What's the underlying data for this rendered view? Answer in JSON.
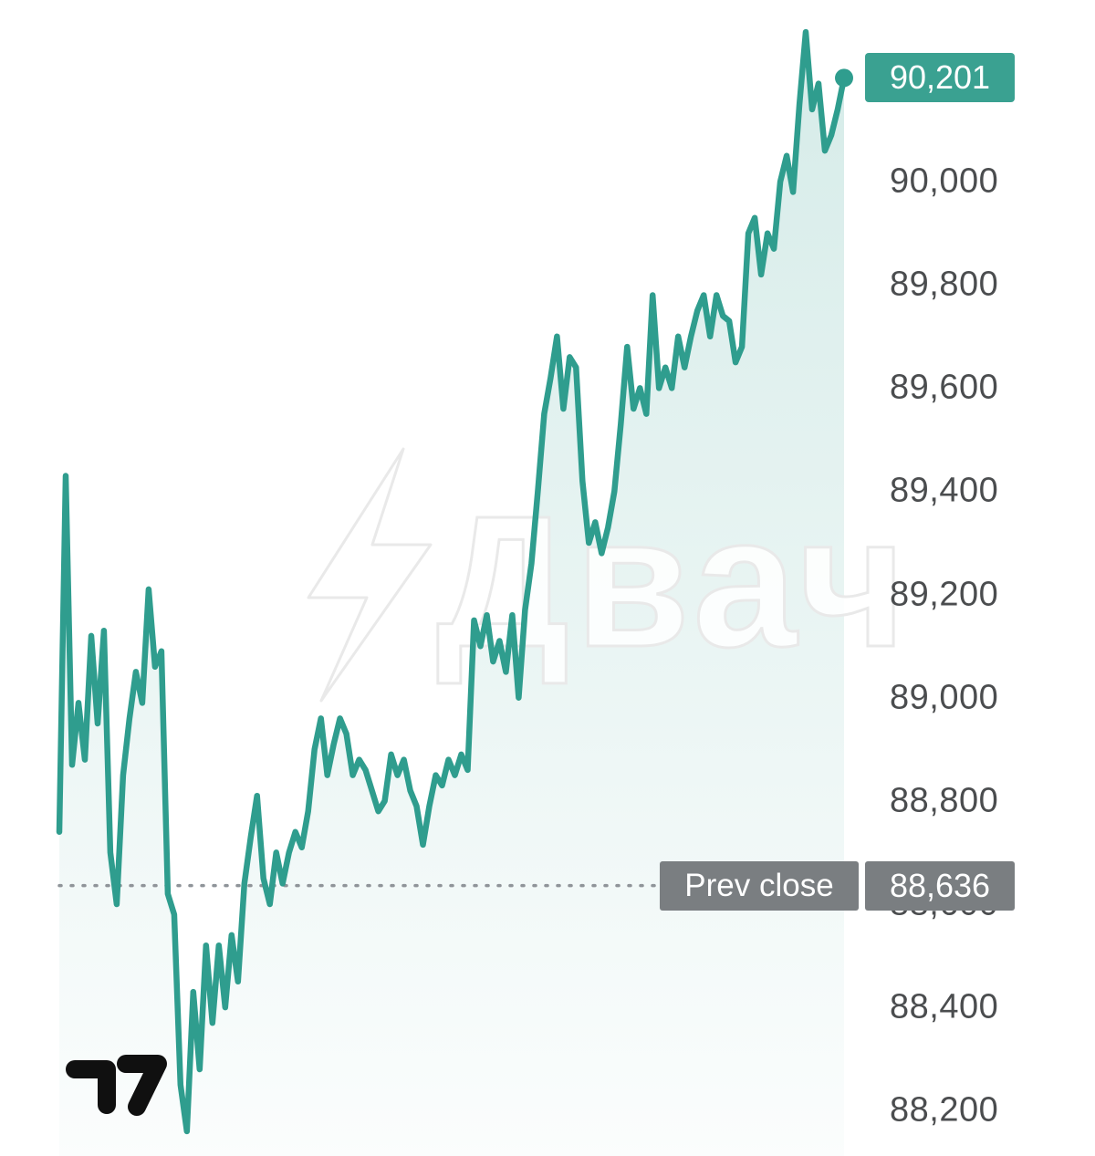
{
  "watermark": {
    "text": "Двач",
    "icon": "lightning-bolt"
  },
  "branding": {
    "name": "tradingview-logo"
  },
  "price_axis": {
    "current_badge": {
      "text": "90,201",
      "color": "#3aa191"
    },
    "prev_close_badge": {
      "label": "Prev close",
      "value": "88,636",
      "color": "#7a7e81"
    }
  },
  "chart_data": {
    "type": "area",
    "title": "",
    "xlabel": "",
    "ylabel": "",
    "legend": false,
    "grid": false,
    "line_color": "#2f9d8e",
    "fill_top": "rgba(47,157,142,0.20)",
    "fill_bottom": "rgba(47,157,142,0.02)",
    "prev_line_color": "#8f9499",
    "current_value": 90201,
    "prev_close_value": 88636,
    "ylim": [
      88112,
      90352
    ],
    "y_ticks": [
      {
        "value": 90000,
        "label": "90,000"
      },
      {
        "value": 89800,
        "label": "89,800"
      },
      {
        "value": 89600,
        "label": "89,600"
      },
      {
        "value": 89400,
        "label": "89,400"
      },
      {
        "value": 89200,
        "label": "89,200"
      },
      {
        "value": 89000,
        "label": "89,000"
      },
      {
        "value": 88800,
        "label": "88,800"
      },
      {
        "value": 88600,
        "label": "88,600"
      },
      {
        "value": 88400,
        "label": "88,400"
      },
      {
        "value": 88200,
        "label": "88,200"
      }
    ],
    "values": [
      88740,
      89430,
      88870,
      88990,
      88880,
      89120,
      88950,
      89130,
      88700,
      88600,
      88850,
      88960,
      89050,
      88990,
      89210,
      89060,
      89090,
      88620,
      88580,
      88250,
      88160,
      88430,
      88280,
      88520,
      88370,
      88520,
      88400,
      88540,
      88450,
      88640,
      88730,
      88810,
      88650,
      88600,
      88700,
      88640,
      88700,
      88740,
      88710,
      88780,
      88900,
      88960,
      88850,
      88910,
      88960,
      88930,
      88850,
      88880,
      88860,
      88820,
      88780,
      88800,
      88890,
      88850,
      88880,
      88820,
      88790,
      88715,
      88790,
      88850,
      88830,
      88880,
      88850,
      88890,
      88860,
      89150,
      89100,
      89160,
      89070,
      89110,
      89050,
      89160,
      89000,
      89170,
      89260,
      89400,
      89550,
      89620,
      89700,
      89560,
      89660,
      89640,
      89420,
      89300,
      89340,
      89280,
      89330,
      89400,
      89530,
      89680,
      89560,
      89600,
      89550,
      89780,
      89600,
      89640,
      89600,
      89700,
      89640,
      89700,
      89750,
      89780,
      89700,
      89780,
      89740,
      89730,
      89650,
      89680,
      89900,
      89930,
      89820,
      89900,
      89870,
      90000,
      90050,
      89980,
      90150,
      90290,
      90140,
      90190,
      90060,
      90090,
      90140,
      90201
    ]
  }
}
